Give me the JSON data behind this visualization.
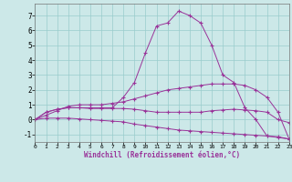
{
  "background_color": "#cce8e8",
  "line_color": "#993399",
  "grid_color": "#99cccc",
  "xlabel": "Windchill (Refroidissement éolien,°C)",
  "xlim": [
    0,
    23
  ],
  "ylim": [
    -1.5,
    7.8
  ],
  "yticks": [
    -1,
    0,
    1,
    2,
    3,
    4,
    5,
    6,
    7
  ],
  "xticks": [
    0,
    1,
    2,
    3,
    4,
    5,
    6,
    7,
    8,
    9,
    10,
    11,
    12,
    13,
    14,
    15,
    16,
    17,
    18,
    19,
    20,
    21,
    22,
    23
  ],
  "series": [
    {
      "x": [
        0,
        1,
        2,
        3,
        4,
        5,
        6,
        7,
        8,
        9,
        10,
        11,
        12,
        13,
        14,
        15,
        16,
        17,
        18,
        19,
        20,
        21,
        22,
        23
      ],
      "y": [
        0.0,
        0.1,
        0.1,
        0.1,
        0.05,
        0.0,
        -0.05,
        -0.1,
        -0.15,
        -0.3,
        -0.4,
        -0.5,
        -0.6,
        -0.7,
        -0.75,
        -0.8,
        -0.85,
        -0.9,
        -0.95,
        -1.0,
        -1.05,
        -1.1,
        -1.15,
        -1.3
      ]
    },
    {
      "x": [
        0,
        1,
        2,
        3,
        4,
        5,
        6,
        7,
        8,
        9,
        10,
        11,
        12,
        13,
        14,
        15,
        16,
        17,
        18,
        19,
        20,
        21,
        22,
        23
      ],
      "y": [
        0.0,
        0.5,
        0.7,
        0.8,
        0.8,
        0.75,
        0.75,
        0.75,
        0.75,
        0.7,
        0.6,
        0.5,
        0.5,
        0.5,
        0.5,
        0.5,
        0.6,
        0.65,
        0.7,
        0.65,
        0.6,
        0.5,
        0.0,
        -0.2
      ]
    },
    {
      "x": [
        0,
        1,
        2,
        3,
        4,
        5,
        6,
        7,
        8,
        9,
        10,
        11,
        12,
        13,
        14,
        15,
        16,
        17,
        18,
        19,
        20,
        21,
        22,
        23
      ],
      "y": [
        0.0,
        0.3,
        0.6,
        0.9,
        1.0,
        1.0,
        1.0,
        1.1,
        1.2,
        1.4,
        1.6,
        1.8,
        2.0,
        2.1,
        2.2,
        2.3,
        2.4,
        2.4,
        2.4,
        2.3,
        2.0,
        1.5,
        0.5,
        -1.3
      ]
    },
    {
      "x": [
        0,
        1,
        2,
        3,
        4,
        5,
        6,
        7,
        8,
        9,
        10,
        11,
        12,
        13,
        14,
        15,
        16,
        17,
        18,
        19,
        20,
        21,
        22,
        23
      ],
      "y": [
        0.0,
        0.5,
        0.7,
        0.8,
        0.8,
        0.8,
        0.8,
        0.8,
        1.5,
        2.5,
        4.5,
        6.3,
        6.5,
        7.3,
        7.0,
        6.5,
        5.0,
        3.0,
        2.5,
        0.8,
        0.0,
        -1.1,
        -1.2,
        -1.3
      ]
    }
  ]
}
